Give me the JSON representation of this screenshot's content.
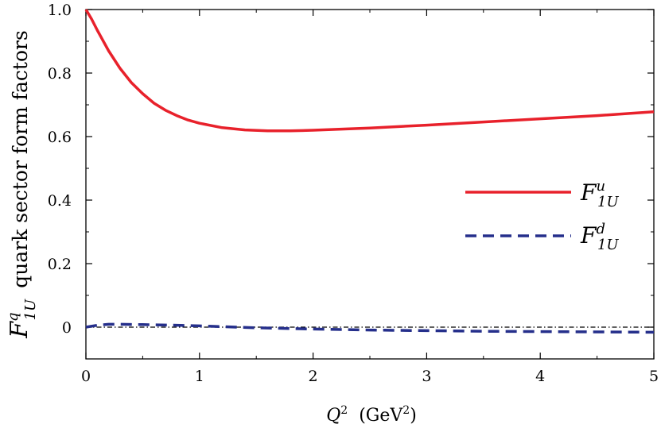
{
  "chart_data": {
    "type": "line",
    "xlabel": {
      "main": "Q",
      "sup": "2",
      "unit_open": "(GeV",
      "unit_sup": "2",
      "unit_close": ")"
    },
    "ylabel": {
      "main": "F",
      "sup": "q",
      "sub": "1U",
      "text": "quark sector form factors"
    },
    "xlim": [
      0,
      5
    ],
    "ylim": [
      -0.1,
      1.0
    ],
    "xticks": [
      "0",
      "1",
      "2",
      "3",
      "4",
      "5"
    ],
    "yticks": [
      "0",
      "0.2",
      "0.4",
      "0.6",
      "0.8",
      "1.0"
    ],
    "grid": false,
    "legend_position": "right",
    "series": [
      {
        "name": {
          "main": "F",
          "sup": "u",
          "sub": "1U"
        },
        "color": "#e8212b",
        "style": "solid",
        "x": [
          0,
          0.05,
          0.1,
          0.2,
          0.3,
          0.4,
          0.5,
          0.6,
          0.7,
          0.8,
          0.9,
          1.0,
          1.2,
          1.4,
          1.6,
          1.8,
          2.0,
          2.5,
          3.0,
          3.5,
          4.0,
          4.5,
          5.0
        ],
        "y": [
          1.0,
          0.97,
          0.935,
          0.87,
          0.815,
          0.77,
          0.735,
          0.705,
          0.683,
          0.666,
          0.652,
          0.642,
          0.628,
          0.621,
          0.618,
          0.618,
          0.62,
          0.627,
          0.636,
          0.646,
          0.656,
          0.666,
          0.678
        ]
      },
      {
        "name": {
          "main": "F",
          "sup": "d",
          "sub": "1U"
        },
        "color": "#252f8b",
        "style": "dashed",
        "x": [
          0,
          0.1,
          0.2,
          0.3,
          0.5,
          0.8,
          1.0,
          1.5,
          2.0,
          2.5,
          3.0,
          3.5,
          4.0,
          4.5,
          5.0
        ],
        "y": [
          0.0,
          0.006,
          0.009,
          0.009,
          0.008,
          0.006,
          0.004,
          -0.002,
          -0.006,
          -0.009,
          -0.011,
          -0.013,
          -0.014,
          -0.015,
          -0.016
        ]
      },
      {
        "name": "",
        "color": "#000000",
        "style": "dash-dot",
        "x": [
          0,
          5
        ],
        "y": [
          0,
          0
        ]
      }
    ]
  }
}
